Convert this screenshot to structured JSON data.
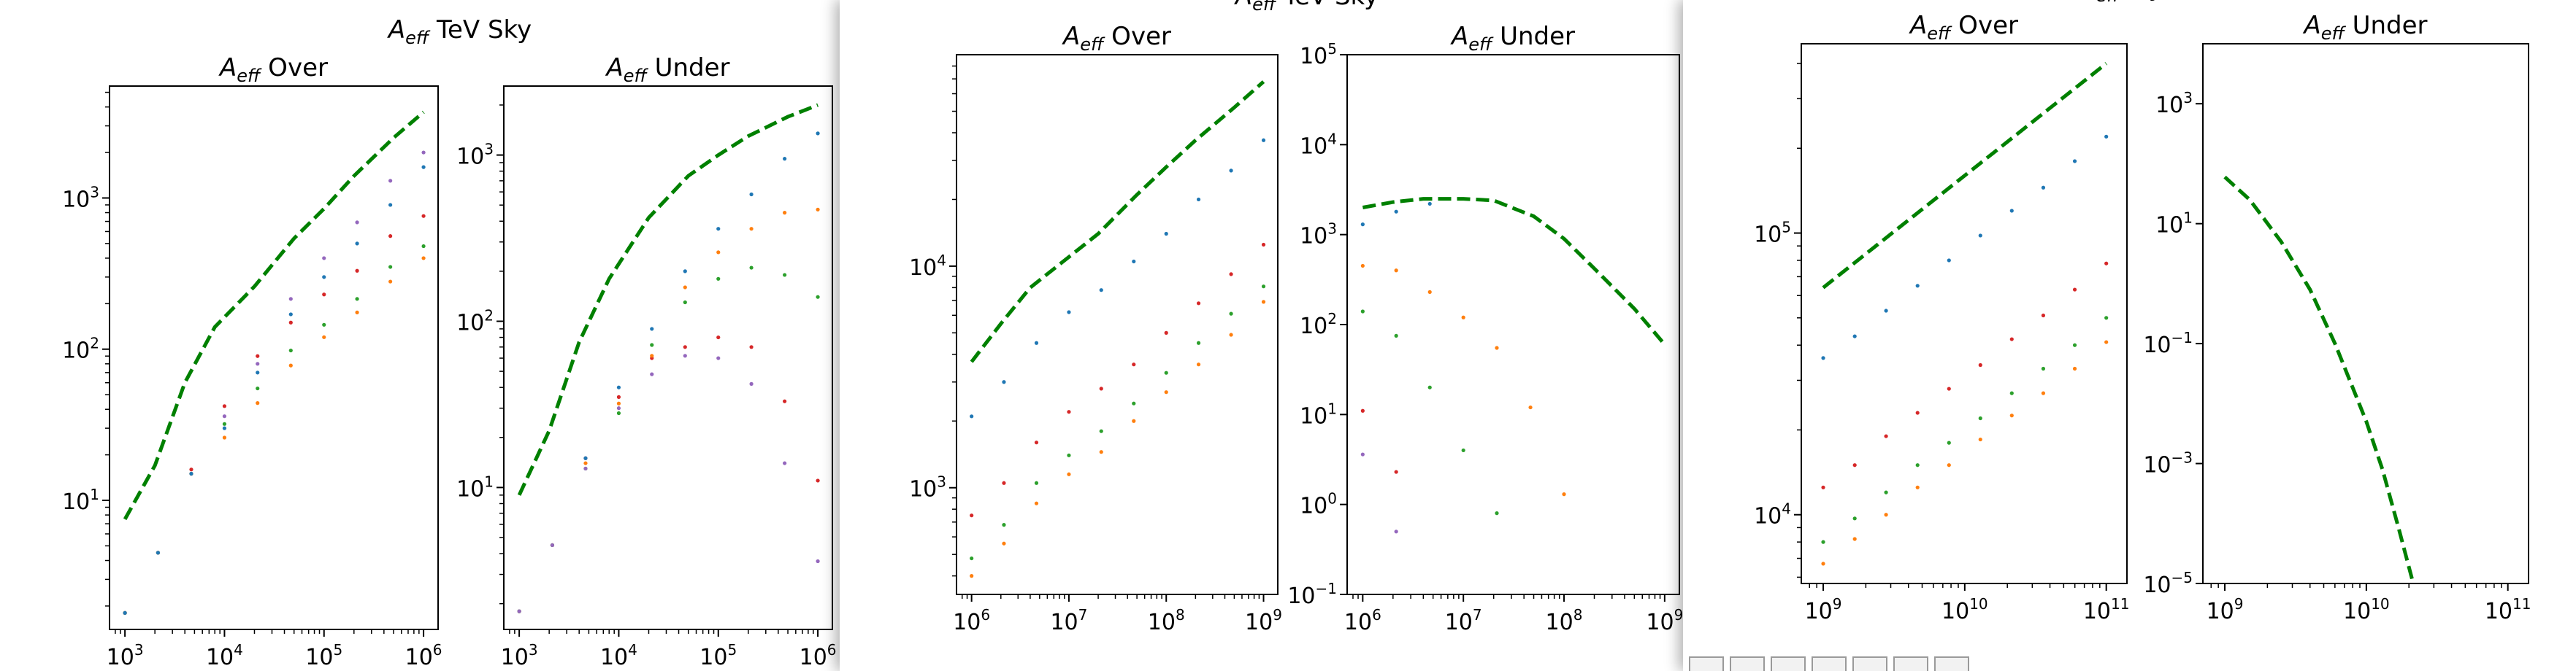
{
  "colors": {
    "aeff_curve": "#008000",
    "scatter_series": [
      "#1f77b4",
      "#ff7f0e",
      "#2ca02c",
      "#d62728",
      "#9467bd"
    ],
    "axes": "#000000",
    "background": "#ffffff"
  },
  "windows": [
    {
      "title": "A_eff TeV Sky",
      "title_parts": [
        "A",
        "eff",
        " TeV Sky"
      ]
    },
    {
      "title": "A_eff TeV Sky",
      "title_parts": [
        "A",
        "eff",
        " TeV Sky"
      ]
    },
    {
      "title": "A_eff ... Sky",
      "title_parts": [
        "A",
        "eff",
        "",
        "Sky"
      ]
    }
  ],
  "toolbar": {
    "buttons": [
      "home-button",
      "back-button",
      "forward-button",
      "pan-button",
      "zoom-button",
      "configure-button",
      "save-button"
    ]
  },
  "chart_data": [
    {
      "type": "scatter",
      "window": 0,
      "title": "A_eff Over",
      "title_parts": [
        "A",
        "eff",
        " Over"
      ],
      "xscale": "log",
      "yscale": "log",
      "xlim": [
        700,
        1400000
      ],
      "ylim": [
        1.4,
        5500
      ],
      "xticks": [
        1000,
        10000,
        100000,
        1000000
      ],
      "xtick_labels": [
        [
          "10",
          "3"
        ],
        [
          "10",
          "4"
        ],
        [
          "10",
          "5"
        ],
        [
          "10",
          "6"
        ]
      ],
      "yticks": [
        10,
        100,
        1000
      ],
      "ytick_labels": [
        [
          "10",
          "1"
        ],
        [
          "10",
          "2"
        ],
        [
          "10",
          "3"
        ]
      ],
      "curve": {
        "x": [
          1000,
          2000,
          4000,
          8000,
          20000,
          50000,
          100000,
          200000,
          500000,
          1000000
        ],
        "y": [
          7.5,
          17,
          60,
          140,
          260,
          540,
          850,
          1400,
          2500,
          3700
        ]
      },
      "series": [
        {
          "color_index": 3,
          "x": [
            1000,
            2150,
            4640,
            10000,
            21500,
            46400,
            100000,
            215000,
            464000,
            1000000
          ],
          "y": [
            1.8,
            4.5,
            16,
            42,
            90,
            150,
            230,
            330,
            560,
            760
          ]
        },
        {
          "color_index": 4,
          "x": [
            1000,
            2150,
            4640,
            10000,
            21500,
            46400,
            100000,
            215000,
            464000,
            1000000
          ],
          "y": [
            1.8,
            4.5,
            15,
            36,
            80,
            215,
            400,
            690,
            1300,
            2000
          ]
        },
        {
          "color_index": 2,
          "x": [
            1000,
            2150,
            4640,
            10000,
            21500,
            46400,
            100000,
            215000,
            464000,
            1000000
          ],
          "y": [
            1.8,
            4.5,
            15,
            32,
            55,
            98,
            145,
            215,
            350,
            480
          ]
        },
        {
          "color_index": 1,
          "x": [
            1000,
            2150,
            4640,
            10000,
            21500,
            46400,
            100000,
            215000,
            464000,
            1000000
          ],
          "y": [
            1.8,
            4.5,
            15,
            26,
            44,
            78,
            120,
            175,
            280,
            400
          ]
        },
        {
          "color_index": 0,
          "x": [
            1000,
            2150,
            4640,
            10000,
            21500,
            46400,
            100000,
            215000,
            464000,
            1000000
          ],
          "y": [
            1.8,
            4.5,
            15,
            30,
            70,
            170,
            300,
            500,
            900,
            1600
          ]
        }
      ]
    },
    {
      "type": "scatter",
      "window": 0,
      "title": "A_eff Under",
      "title_parts": [
        "A",
        "eff",
        " Under"
      ],
      "xscale": "log",
      "yscale": "log",
      "xlim": [
        700,
        1400000
      ],
      "ylim": [
        1.4,
        2600
      ],
      "xticks": [
        1000,
        10000,
        100000,
        1000000
      ],
      "xtick_labels": [
        [
          "10",
          "3"
        ],
        [
          "10",
          "4"
        ],
        [
          "10",
          "5"
        ],
        [
          "10",
          "6"
        ]
      ],
      "yticks": [
        10,
        100,
        1000
      ],
      "ytick_labels": [
        [
          "10",
          "1"
        ],
        [
          "10",
          "2"
        ],
        [
          "10",
          "3"
        ]
      ],
      "curve": {
        "x": [
          1000,
          2000,
          4000,
          8000,
          20000,
          50000,
          100000,
          200000,
          500000,
          1000000
        ],
        "y": [
          9,
          22,
          75,
          180,
          420,
          750,
          1000,
          1300,
          1700,
          2000
        ]
      },
      "series": [
        {
          "color_index": 3,
          "x": [
            1000,
            2150,
            4640,
            10000,
            21500,
            46400,
            100000,
            215000,
            464000,
            1000000
          ],
          "y": [
            1.8,
            4.5,
            15,
            35,
            60,
            70,
            80,
            70,
            33,
            11
          ]
        },
        {
          "color_index": 0,
          "x": [
            1000,
            2150,
            4640,
            10000,
            21500,
            46400,
            100000,
            215000,
            464000,
            1000000
          ],
          "y": [
            1.8,
            4.5,
            15,
            40,
            90,
            200,
            360,
            580,
            950,
            1350
          ]
        },
        {
          "color_index": 1,
          "x": [
            1000,
            2150,
            4640,
            10000,
            21500,
            46400,
            100000,
            215000,
            464000,
            1000000
          ],
          "y": [
            1.8,
            4.5,
            14,
            32,
            62,
            160,
            260,
            360,
            450,
            470
          ]
        },
        {
          "color_index": 2,
          "x": [
            1000,
            2150,
            4640,
            10000,
            21500,
            46400,
            100000,
            215000,
            464000,
            1000000
          ],
          "y": [
            1.8,
            4.5,
            13,
            28,
            72,
            130,
            180,
            210,
            190,
            140
          ]
        },
        {
          "color_index": 4,
          "x": [
            1000,
            2150,
            4640,
            10000,
            21500,
            46400,
            100000,
            215000,
            464000,
            1000000
          ],
          "y": [
            1.8,
            4.5,
            13,
            30,
            48,
            62,
            60,
            42,
            14,
            3.6
          ]
        }
      ]
    },
    {
      "type": "scatter",
      "window": 1,
      "title": "A_eff Over",
      "title_parts": [
        "A",
        "eff",
        " Over"
      ],
      "xscale": "log",
      "yscale": "log",
      "xlim": [
        700000,
        1400000000
      ],
      "ylim": [
        330,
        90000
      ],
      "xticks": [
        1000000,
        10000000,
        100000000,
        1000000000
      ],
      "xtick_labels": [
        [
          "10",
          "6"
        ],
        [
          "10",
          "7"
        ],
        [
          "10",
          "8"
        ],
        [
          "10",
          "9"
        ]
      ],
      "yticks": [
        1000,
        10000
      ],
      "ytick_labels": [
        [
          "10",
          "3"
        ],
        [
          "10",
          "4"
        ]
      ],
      "curve": {
        "x": [
          1000000,
          2000000,
          4000000,
          10000000,
          20000000,
          50000000,
          100000000,
          200000000,
          500000000,
          1000000000
        ],
        "y": [
          3700,
          5500,
          8000,
          11000,
          14000,
          21000,
          28000,
          37000,
          52000,
          68000
        ]
      },
      "series": [
        {
          "color_index": 0,
          "x": [
            1000000,
            2150000,
            4640000,
            10000000,
            21500000,
            46400000,
            100000000,
            215000000,
            464000000,
            1000000000
          ],
          "y": [
            2100,
            3000,
            4500,
            6200,
            7800,
            10500,
            14000,
            20000,
            27000,
            37000
          ]
        },
        {
          "color_index": 3,
          "x": [
            1000000,
            2150000,
            4640000,
            10000000,
            21500000,
            46400000,
            100000000,
            215000000,
            464000000,
            1000000000
          ],
          "y": [
            750,
            1050,
            1600,
            2200,
            2800,
            3600,
            5000,
            6800,
            9200,
            12500
          ]
        },
        {
          "color_index": 2,
          "x": [
            1000000,
            2150000,
            4640000,
            10000000,
            21500000,
            46400000,
            100000000,
            215000000,
            464000000,
            1000000000
          ],
          "y": [
            480,
            680,
            1050,
            1400,
            1800,
            2400,
            3300,
            4500,
            6100,
            8100
          ]
        },
        {
          "color_index": 1,
          "x": [
            1000000,
            2150000,
            4640000,
            10000000,
            21500000,
            46400000,
            100000000,
            215000000,
            464000000,
            1000000000
          ],
          "y": [
            400,
            560,
            850,
            1150,
            1450,
            2000,
            2700,
            3600,
            4900,
            6900
          ]
        }
      ]
    },
    {
      "type": "scatter",
      "window": 1,
      "title": "A_eff Under",
      "title_parts": [
        "A",
        "eff",
        " Under"
      ],
      "xscale": "log",
      "yscale": "log",
      "xlim": [
        700000,
        1400000000
      ],
      "ylim": [
        0.1,
        100000
      ],
      "xticks": [
        1000000,
        10000000,
        100000000,
        1000000000
      ],
      "xtick_labels": [
        [
          "10",
          "6"
        ],
        [
          "10",
          "7"
        ],
        [
          "10",
          "8"
        ],
        [
          "10",
          "9"
        ]
      ],
      "yticks": [
        0.1,
        1,
        10,
        100,
        1000,
        10000,
        100000
      ],
      "ytick_labels": [
        [
          "10",
          "−1"
        ],
        [
          "10",
          "0"
        ],
        [
          "10",
          "1"
        ],
        [
          "10",
          "2"
        ],
        [
          "10",
          "3"
        ],
        [
          "10",
          "4"
        ],
        [
          "10",
          "5"
        ]
      ],
      "curve": {
        "x": [
          1000000,
          2000000,
          4000000,
          10000000,
          20000000,
          50000000,
          100000000,
          200000000,
          500000000,
          1000000000
        ],
        "y": [
          2000,
          2300,
          2500,
          2500,
          2400,
          1600,
          900,
          420,
          150,
          60
        ]
      },
      "series": [
        {
          "color_index": 0,
          "x": [
            1000000,
            2150000,
            4640000
          ],
          "y": [
            1300,
            1800,
            2200
          ]
        },
        {
          "color_index": 1,
          "x": [
            1000000,
            2150000,
            4640000,
            10000000,
            21500000,
            46400000,
            100000000
          ],
          "y": [
            450,
            400,
            230,
            120,
            55,
            12,
            1.3
          ]
        },
        {
          "color_index": 2,
          "x": [
            1000000,
            2150000,
            4640000,
            10000000,
            21500000
          ],
          "y": [
            140,
            75,
            20,
            4,
            0.8
          ]
        },
        {
          "color_index": 3,
          "x": [
            1000000,
            2150000
          ],
          "y": [
            11,
            2.3
          ]
        },
        {
          "color_index": 4,
          "x": [
            1000000,
            2150000
          ],
          "y": [
            3.6,
            0.5
          ]
        }
      ]
    },
    {
      "type": "scatter",
      "window": 2,
      "title": "A_eff Over",
      "title_parts": [
        "A",
        "eff",
        " Over"
      ],
      "xscale": "log",
      "yscale": "log",
      "xlim": [
        700000000,
        140000000000
      ],
      "ylim": [
        5700,
        470000
      ],
      "xticks": [
        1000000000,
        10000000000,
        100000000000
      ],
      "xtick_labels": [
        [
          "10",
          "9"
        ],
        [
          "10",
          "10"
        ],
        [
          "10",
          "11"
        ]
      ],
      "yticks": [
        10000,
        100000
      ],
      "ytick_labels": [
        [
          "10",
          "4"
        ],
        [
          "10",
          "5"
        ]
      ],
      "curve": {
        "x": [
          1000000000,
          100000000000
        ],
        "y": [
          64000,
          400000
        ]
      },
      "series": [
        {
          "color_index": 0,
          "x": [
            1000000000,
            1670000000,
            2780000000,
            4640000000,
            7740000000,
            12900000000,
            21500000000,
            35900000000,
            59900000000,
            100000000000
          ],
          "y": [
            36000,
            43000,
            53000,
            65000,
            80000,
            98000,
            120000,
            145000,
            180000,
            220000
          ]
        },
        {
          "color_index": 3,
          "x": [
            1000000000,
            1670000000,
            2780000000,
            4640000000,
            7740000000,
            12900000000,
            21500000000,
            35900000000,
            59900000000,
            100000000000
          ],
          "y": [
            12500,
            15000,
            19000,
            23000,
            28000,
            34000,
            42000,
            51000,
            63000,
            78000
          ]
        },
        {
          "color_index": 2,
          "x": [
            1000000000,
            1670000000,
            2780000000,
            4640000000,
            7740000000,
            12900000000,
            21500000000,
            35900000000,
            59900000000,
            100000000000
          ],
          "y": [
            8000,
            9700,
            12000,
            15000,
            18000,
            22000,
            27000,
            33000,
            40000,
            50000
          ]
        },
        {
          "color_index": 1,
          "x": [
            1000000000,
            1670000000,
            2780000000,
            4640000000,
            7740000000,
            12900000000,
            21500000000,
            35900000000,
            59900000000,
            100000000000
          ],
          "y": [
            6700,
            8200,
            10000,
            12500,
            15000,
            18500,
            22500,
            27000,
            33000,
            41000
          ]
        }
      ]
    },
    {
      "type": "line",
      "window": 2,
      "title": "A_eff Under",
      "title_parts": [
        "A",
        "eff",
        " Under"
      ],
      "xscale": "log",
      "yscale": "log",
      "xlim": [
        700000000,
        140000000000
      ],
      "ylim": [
        1e-05,
        10000
      ],
      "xticks": [
        1000000000,
        10000000000,
        100000000000
      ],
      "xtick_labels": [
        [
          "10",
          "9"
        ],
        [
          "10",
          "10"
        ],
        [
          "10",
          "11"
        ]
      ],
      "yticks": [
        1e-05,
        0.001,
        0.1,
        10,
        1000
      ],
      "ytick_labels": [
        [
          "10",
          "−5"
        ],
        [
          "10",
          "−3"
        ],
        [
          "10",
          "−1"
        ],
        [
          "10",
          "1"
        ],
        [
          "10",
          "3"
        ]
      ],
      "curve": {
        "x": [
          1000000000,
          1500000000,
          2500000000,
          4000000000,
          6000000000,
          10000000000,
          13000000000,
          17000000000,
          22000000000
        ],
        "y": [
          60,
          25,
          5,
          0.8,
          0.1,
          0.005,
          0.0008,
          8e-05,
          8e-06
        ]
      },
      "series": []
    }
  ]
}
